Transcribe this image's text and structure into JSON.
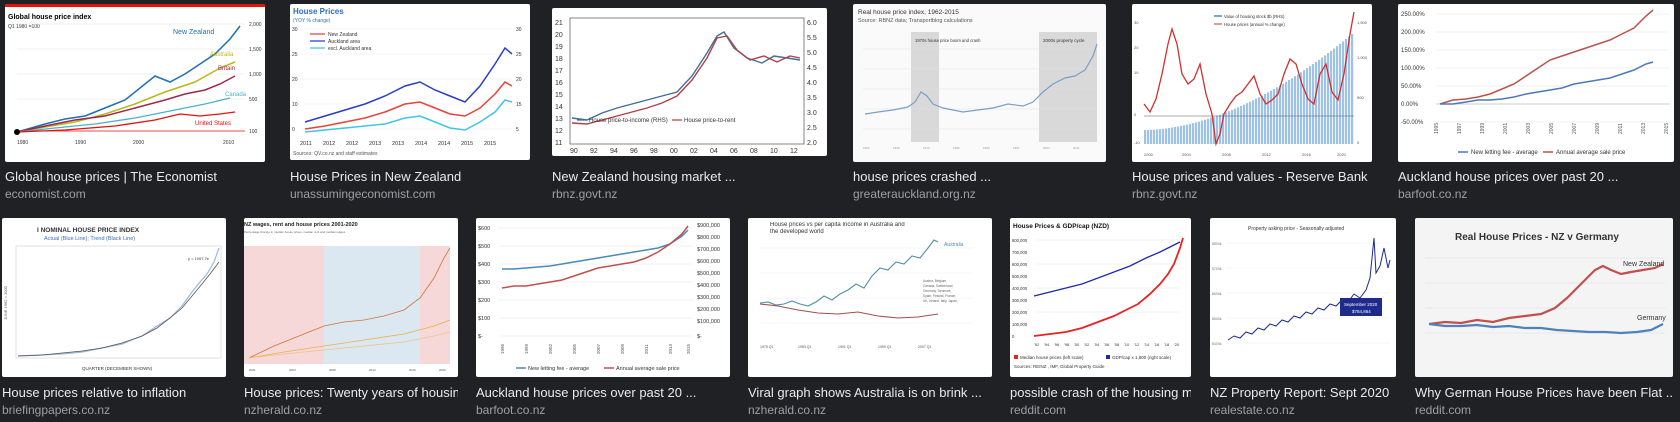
{
  "results": [
    {
      "title": "Global house prices | The Economist",
      "source": "economist.com",
      "thumb": {
        "heading": "Global house price index",
        "subheading": "Q1 1980 =100",
        "labels": [
          "New Zealand",
          "Australia",
          "Britain",
          "Canada",
          "United States"
        ],
        "ticks": [
          "1980",
          "1990",
          "2000",
          "2010"
        ],
        "right_ticks": [
          "2,000",
          "1,500",
          "1,000",
          "500",
          "100"
        ]
      }
    },
    {
      "title": "House Prices in New Zealand",
      "source": "unassumingeconomist.com",
      "thumb": {
        "heading": "House Prices",
        "subheading": "(YOY % change)",
        "legend": [
          "New Zealand",
          "Auckland area",
          "excl. Auckland area"
        ],
        "ticks": [
          "2011",
          "2012",
          "2012",
          "2013",
          "2013",
          "2014",
          "2014",
          "2015",
          "2015"
        ],
        "sources": "Sources: QV.co.nz and staff estimates"
      }
    },
    {
      "title": "New Zealand housing market ...",
      "source": "rbnz.govt.nz",
      "thumb": {
        "left_ticks": [
          "21",
          "20",
          "19",
          "18",
          "17",
          "16",
          "15",
          "14",
          "13",
          "12",
          "11"
        ],
        "right_ticks": [
          "6.0",
          "5.5",
          "5.0",
          "4.5",
          "4.0",
          "3.5",
          "3.0",
          "2.5",
          "2.0"
        ],
        "ticks": [
          "90",
          "92",
          "94",
          "96",
          "98",
          "00",
          "02",
          "04",
          "06",
          "08",
          "10",
          "12"
        ],
        "legend": [
          "House price-to-income (RHS)",
          "House price-to-rent"
        ]
      }
    },
    {
      "title": "house prices crashed ...",
      "source": "greaterauckland.org.nz",
      "thumb": {
        "heading": "Real house price index, 1962-2015",
        "subheading": "Source: RBNZ data; Transportblog calculations",
        "band1": "1970s house price boom and crash",
        "band2": "2000s property cycle"
      }
    },
    {
      "title": "House prices and values - Reserve Bank ...",
      "source": "rbnz.govt.nz",
      "thumb": {
        "legend": [
          "Value of housing stock $b (RHS)",
          "House prices (annual % change)"
        ]
      }
    },
    {
      "title": "Auckland house prices over past 20 ...",
      "source": "barfoot.co.nz",
      "thumb": {
        "left_ticks": [
          "250.00%",
          "200.00%",
          "150.00%",
          "100.00%",
          "50.00%",
          "0.00%",
          "-50.00%"
        ],
        "legend": [
          "New letting fee - average",
          "Annual average sale price"
        ]
      }
    },
    {
      "title": "House prices relative to inflation",
      "source": "briefingpapers.co.nz",
      "thumb": {
        "heading": "I NOMINAL HOUSE PRICE INDEX",
        "subheading": "Actual (Blue Line); Trend (Black Line)",
        "xlabel": "QUARTER (DECEMBER SHOWN)"
      }
    },
    {
      "title": "House prices: Twenty years of housing ...",
      "source": "nzherald.co.nz",
      "thumb": {
        "heading": "NZ wages, rent and house prices 2001-2020"
      }
    },
    {
      "title": "Auckland house prices over past 20 ...",
      "source": "barfoot.co.nz",
      "thumb": {
        "left_ticks": [
          "$600",
          "$500",
          "$400",
          "$300",
          "$200",
          "$100",
          "$-"
        ],
        "right_ticks": [
          "$900,000",
          "$800,000",
          "$700,000",
          "$600,000",
          "$500,000",
          "$400,000",
          "$300,000",
          "$200,000",
          "$100,000",
          "$-"
        ],
        "legend": [
          "New letting fee - average",
          "Annual average sale price"
        ]
      }
    },
    {
      "title": "Viral graph shows Australia is on brink ...",
      "source": "nzherald.co.nz",
      "thumb": {
        "heading": "House prices vs per capita Income in Australia and the developed world",
        "note": "Australia"
      }
    },
    {
      "title": "possible crash of the housing mar...",
      "source": "reddit.com",
      "thumb": {
        "heading": "House Prices & GDP/cap (NZD)",
        "left_ticks": [
          "800,000",
          "700,000",
          "600,000",
          "500,000",
          "400,000",
          "300,000",
          "200,000",
          "100,000",
          "0"
        ],
        "ticks": [
          "'92",
          "'94",
          "'96",
          "'98",
          "'00",
          "'02",
          "'04",
          "'06",
          "'08",
          "'10",
          "'12",
          "'14",
          "'16",
          "'18",
          "'20"
        ],
        "legend": [
          "Median house prices (left scale)",
          "GDP/cap x 1,800 (right scale)"
        ],
        "sources": "Sources: REINZ , IMF, Global Property Guide"
      }
    },
    {
      "title": "NZ Property Report: Sept 2020",
      "source": "realestate.co.nz",
      "thumb": {
        "heading": "Property asking price - Seasonally adjusted",
        "callout_month": "September 2020",
        "callout_value": "$784,864"
      }
    },
    {
      "title": "Why German House Prices have been Flat ...",
      "source": "reddit.com",
      "thumb": {
        "heading": "Real House Prices - NZ v Germany",
        "labels": [
          "New Zealand",
          "Germany"
        ]
      }
    }
  ]
}
